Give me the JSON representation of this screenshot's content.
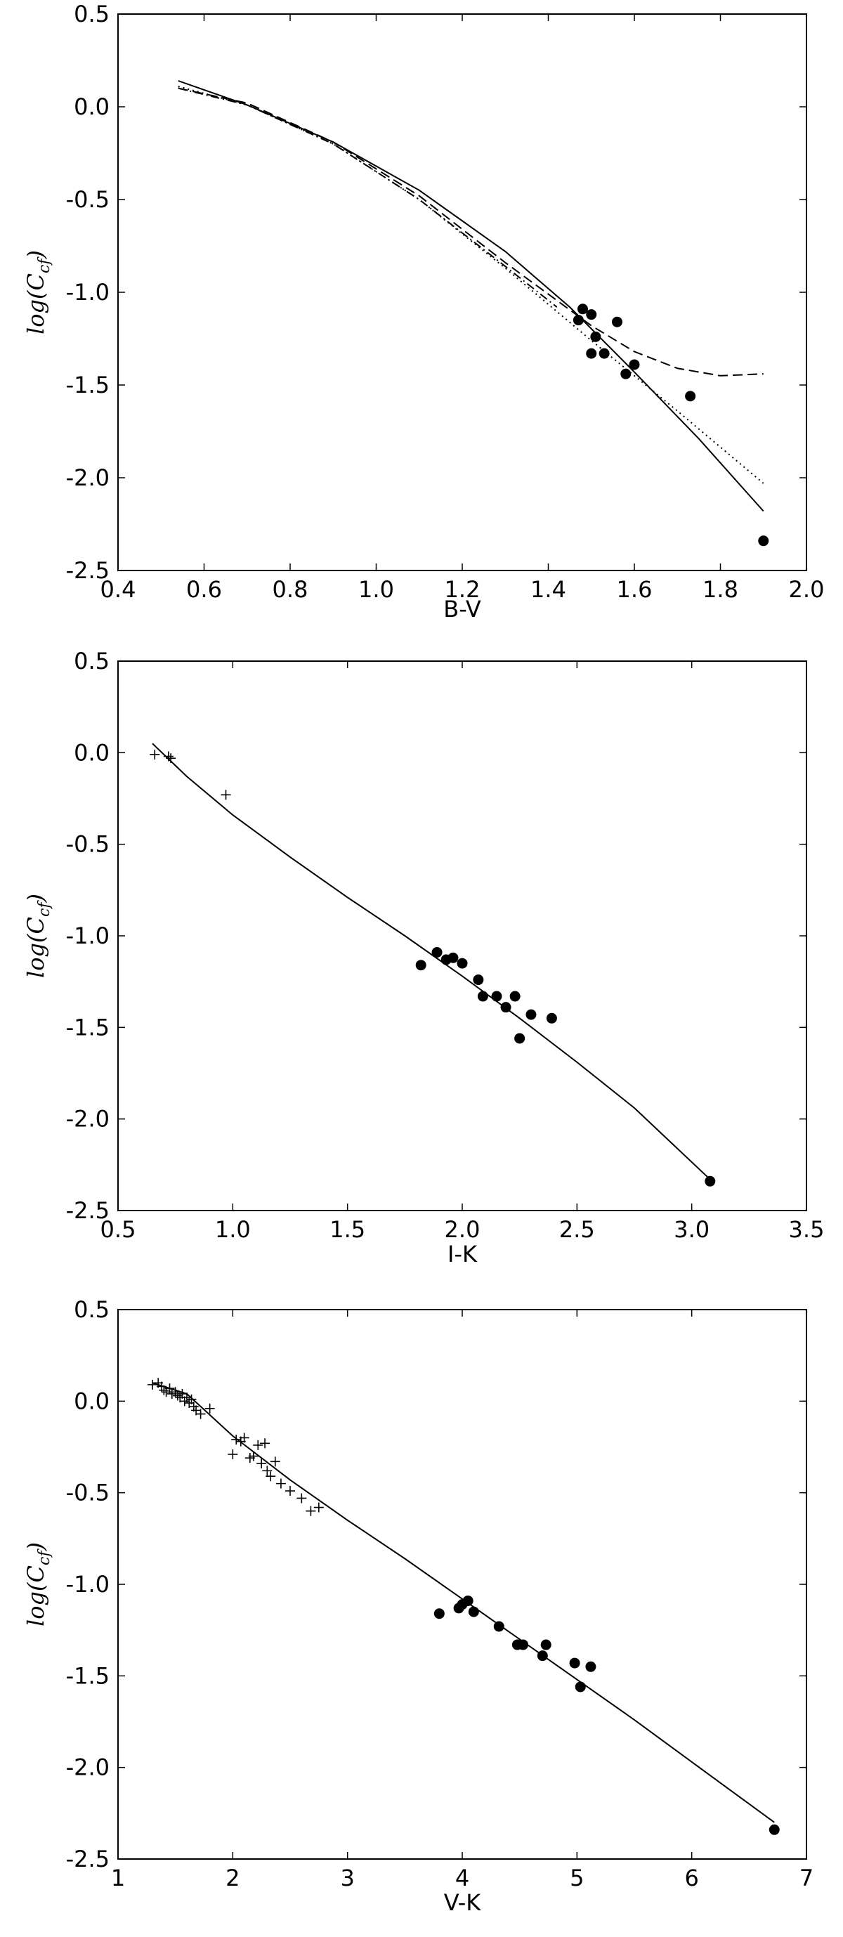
{
  "chart_data": [
    {
      "type": "scatter",
      "xlabel": "B-V",
      "ylabel_main": "log(C",
      "ylabel_sub": "cf",
      "ylabel_end": ")",
      "xlim": [
        0.4,
        2.0
      ],
      "ylim": [
        -2.5,
        0.5
      ],
      "xticks": [
        "0.4",
        "0.6",
        "0.8",
        "1.0",
        "1.2",
        "1.4",
        "1.6",
        "1.8",
        "2.0"
      ],
      "yticks": [
        "0.5",
        "0.0",
        "-0.5",
        "-1.0",
        "-1.5",
        "-2.0",
        "-2.5"
      ],
      "xtick_values": [
        0.4,
        0.6,
        0.8,
        1.0,
        1.2,
        1.4,
        1.6,
        1.8,
        2.0
      ],
      "ytick_values": [
        0.5,
        0.0,
        -0.5,
        -1.0,
        -1.5,
        -2.0,
        -2.5
      ],
      "series": [
        {
          "style": "solid",
          "type": "line",
          "x": [
            0.54,
            0.7,
            0.9,
            1.1,
            1.3,
            1.45,
            1.6,
            1.75,
            1.9
          ],
          "y": [
            0.14,
            0.01,
            -0.19,
            -0.45,
            -0.78,
            -1.08,
            -1.43,
            -1.79,
            -2.18
          ]
        },
        {
          "style": "dashed",
          "type": "line",
          "x": [
            0.54,
            0.7,
            0.9,
            1.1,
            1.3,
            1.5,
            1.6,
            1.7,
            1.8,
            1.9
          ],
          "y": [
            0.1,
            0.02,
            -0.19,
            -0.48,
            -0.84,
            -1.18,
            -1.32,
            -1.41,
            -1.45,
            -1.44
          ]
        },
        {
          "style": "dotted",
          "type": "line",
          "x": [
            0.54,
            0.7,
            0.9,
            1.1,
            1.3,
            1.5,
            1.7,
            1.9
          ],
          "y": [
            0.11,
            0.01,
            -0.2,
            -0.5,
            -0.87,
            -1.26,
            -1.64,
            -2.03
          ]
        },
        {
          "style": "dashdot",
          "type": "line",
          "x": [
            0.54,
            0.7,
            0.9,
            1.1,
            1.3,
            1.42
          ],
          "y": [
            0.1,
            0.01,
            -0.2,
            -0.5,
            -0.86,
            -1.08
          ]
        },
        {
          "marker": "circle",
          "type": "scatter",
          "points": [
            [
              1.47,
              -1.15
            ],
            [
              1.48,
              -1.09
            ],
            [
              1.5,
              -1.12
            ],
            [
              1.5,
              -1.33
            ],
            [
              1.51,
              -1.24
            ],
            [
              1.53,
              -1.33
            ],
            [
              1.56,
              -1.16
            ],
            [
              1.58,
              -1.44
            ],
            [
              1.6,
              -1.39
            ],
            [
              1.73,
              -1.56
            ],
            [
              1.9,
              -2.34
            ]
          ]
        }
      ]
    },
    {
      "type": "scatter",
      "xlabel": "I-K",
      "ylabel_main": "log(C",
      "ylabel_sub": "cf",
      "ylabel_end": ")",
      "xlim": [
        0.5,
        3.5
      ],
      "ylim": [
        -2.5,
        0.5
      ],
      "xticks": [
        "0.5",
        "1.0",
        "1.5",
        "2.0",
        "2.5",
        "3.0",
        "3.5"
      ],
      "yticks": [
        "0.5",
        "0.0",
        "-0.5",
        "-1.0",
        "-1.5",
        "-2.0",
        "-2.5"
      ],
      "xtick_values": [
        0.5,
        1.0,
        1.5,
        2.0,
        2.5,
        3.0,
        3.5
      ],
      "ytick_values": [
        0.5,
        0.0,
        -0.5,
        -1.0,
        -1.5,
        -2.0,
        -2.5
      ],
      "series": [
        {
          "style": "solid",
          "type": "line",
          "x": [
            0.65,
            0.8,
            1.0,
            1.25,
            1.5,
            1.75,
            2.0,
            2.25,
            2.5,
            2.75,
            3.08
          ],
          "y": [
            0.05,
            -0.13,
            -0.34,
            -0.57,
            -0.79,
            -1.0,
            -1.22,
            -1.45,
            -1.69,
            -1.94,
            -2.33
          ]
        },
        {
          "marker": "circle",
          "type": "scatter",
          "points": [
            [
              1.82,
              -1.16
            ],
            [
              1.89,
              -1.09
            ],
            [
              1.93,
              -1.13
            ],
            [
              1.96,
              -1.12
            ],
            [
              2.0,
              -1.15
            ],
            [
              2.07,
              -1.24
            ],
            [
              2.09,
              -1.33
            ],
            [
              2.15,
              -1.33
            ],
            [
              2.19,
              -1.39
            ],
            [
              2.23,
              -1.33
            ],
            [
              2.25,
              -1.56
            ],
            [
              2.3,
              -1.43
            ],
            [
              2.39,
              -1.45
            ],
            [
              3.08,
              -2.34
            ]
          ]
        },
        {
          "marker": "plus",
          "type": "scatter",
          "points": [
            [
              0.66,
              -0.01
            ],
            [
              0.72,
              -0.02
            ],
            [
              0.73,
              -0.03
            ],
            [
              0.97,
              -0.23
            ]
          ]
        }
      ]
    },
    {
      "type": "scatter",
      "xlabel": "V-K",
      "ylabel_main": "log(C",
      "ylabel_sub": "cf",
      "ylabel_end": ")",
      "xlim": [
        1,
        7
      ],
      "ylim": [
        -2.5,
        0.5
      ],
      "xticks": [
        "1",
        "2",
        "3",
        "4",
        "5",
        "6",
        "7"
      ],
      "yticks": [
        "0.5",
        "0.0",
        "-0.5",
        "-1.0",
        "-1.5",
        "-2.0",
        "-2.5"
      ],
      "xtick_values": [
        1,
        2,
        3,
        4,
        5,
        6,
        7
      ],
      "ytick_values": [
        0.5,
        0.0,
        -0.5,
        -1.0,
        -1.5,
        -2.0,
        -2.5
      ],
      "series": [
        {
          "style": "solid",
          "type": "line",
          "x": [
            1.3,
            1.6,
            2.0,
            2.5,
            3.0,
            3.5,
            4.0,
            4.5,
            5.0,
            5.5,
            6.0,
            6.72
          ],
          "y": [
            0.1,
            0.04,
            -0.19,
            -0.43,
            -0.65,
            -0.86,
            -1.08,
            -1.3,
            -1.52,
            -1.74,
            -1.97,
            -2.3
          ]
        },
        {
          "marker": "circle",
          "type": "scatter",
          "points": [
            [
              3.8,
              -1.16
            ],
            [
              3.97,
              -1.13
            ],
            [
              4.0,
              -1.11
            ],
            [
              4.05,
              -1.09
            ],
            [
              4.1,
              -1.15
            ],
            [
              4.32,
              -1.23
            ],
            [
              4.48,
              -1.33
            ],
            [
              4.53,
              -1.33
            ],
            [
              4.7,
              -1.39
            ],
            [
              4.73,
              -1.33
            ],
            [
              4.98,
              -1.43
            ],
            [
              5.03,
              -1.56
            ],
            [
              5.12,
              -1.45
            ],
            [
              6.72,
              -2.34
            ]
          ]
        },
        {
          "marker": "plus",
          "type": "scatter",
          "points": [
            [
              1.3,
              0.09
            ],
            [
              1.35,
              0.1
            ],
            [
              1.38,
              0.08
            ],
            [
              1.4,
              0.06
            ],
            [
              1.42,
              0.05
            ],
            [
              1.45,
              0.07
            ],
            [
              1.47,
              0.04
            ],
            [
              1.5,
              0.05
            ],
            [
              1.52,
              0.03
            ],
            [
              1.54,
              0.02
            ],
            [
              1.56,
              0.04
            ],
            [
              1.58,
              0.0
            ],
            [
              1.6,
              0.02
            ],
            [
              1.62,
              -0.01
            ],
            [
              1.64,
              0.01
            ],
            [
              1.66,
              -0.03
            ],
            [
              1.68,
              -0.05
            ],
            [
              1.72,
              -0.07
            ],
            [
              1.8,
              -0.04
            ],
            [
              2.0,
              -0.29
            ],
            [
              2.03,
              -0.21
            ],
            [
              2.07,
              -0.22
            ],
            [
              2.1,
              -0.2
            ],
            [
              2.15,
              -0.31
            ],
            [
              2.18,
              -0.3
            ],
            [
              2.22,
              -0.24
            ],
            [
              2.25,
              -0.34
            ],
            [
              2.28,
              -0.23
            ],
            [
              2.3,
              -0.38
            ],
            [
              2.33,
              -0.41
            ],
            [
              2.37,
              -0.33
            ],
            [
              2.42,
              -0.45
            ],
            [
              2.5,
              -0.49
            ],
            [
              2.6,
              -0.53
            ],
            [
              2.68,
              -0.6
            ],
            [
              2.75,
              -0.58
            ]
          ]
        }
      ]
    }
  ]
}
